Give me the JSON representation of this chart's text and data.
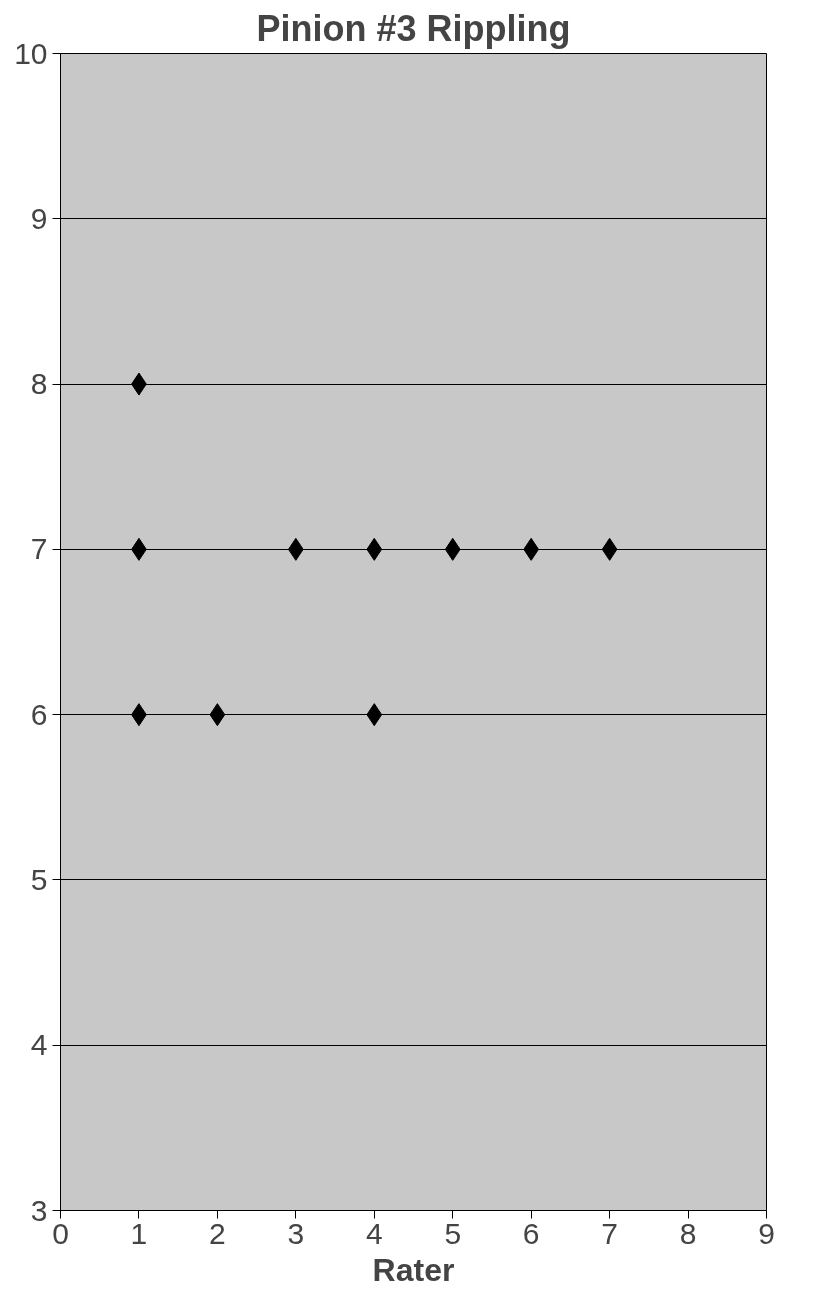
{
  "chart_data": {
    "type": "scatter",
    "title": "Pinion #3 Rippling",
    "xlabel": "Rater",
    "x": [
      1,
      1,
      1,
      2,
      3,
      4,
      4,
      5,
      6,
      7
    ],
    "series": [
      {
        "color": "#000000",
        "values": [
          8,
          7,
          6,
          6,
          7,
          7,
          6,
          7,
          7,
          7
        ]
      }
    ],
    "xlim": [
      0,
      9
    ],
    "xticks": [
      0,
      1,
      2,
      3,
      4,
      5,
      6,
      7,
      8,
      9
    ],
    "ylim": [
      3,
      10
    ],
    "yticks": [
      3,
      4,
      5,
      6,
      7,
      8,
      9,
      10
    ],
    "grid": "y",
    "marker": "diamond"
  }
}
